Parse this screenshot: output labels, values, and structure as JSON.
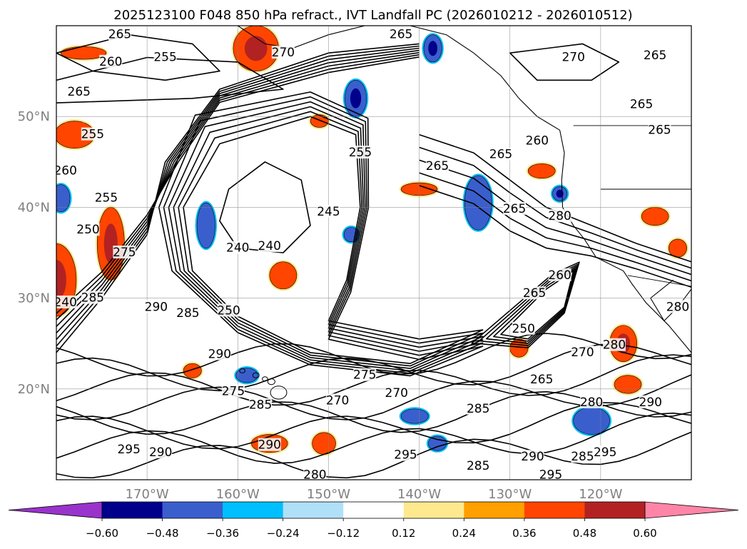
{
  "chart_data": {
    "type": "contour",
    "title": "2025123100 F048 850 hPa refract., IVT Landfall PC (2026010212 - 2026010512)",
    "xlabel": "",
    "ylabel": "",
    "lon_range": [
      -180,
      -110
    ],
    "lat_range": [
      10,
      60
    ],
    "lon_ticks": [
      "170°W",
      "160°W",
      "150°W",
      "140°W",
      "130°W",
      "120°W"
    ],
    "lon_tick_values": [
      -170,
      -160,
      -150,
      -140,
      -130,
      -120
    ],
    "lat_ticks": [
      "20°N",
      "30°N",
      "40°N",
      "50°N"
    ],
    "lat_tick_values": [
      20,
      30,
      40,
      50
    ],
    "grid": true,
    "contour_labels": [
      {
        "text": "265",
        "lon": -173,
        "lat": 59
      },
      {
        "text": "260",
        "lon": -174,
        "lat": 56
      },
      {
        "text": "255",
        "lon": -168,
        "lat": 56.5
      },
      {
        "text": "265",
        "lon": -177.5,
        "lat": 52.7
      },
      {
        "text": "255",
        "lon": -176,
        "lat": 48
      },
      {
        "text": "260",
        "lon": -179,
        "lat": 44
      },
      {
        "text": "255",
        "lon": -174.5,
        "lat": 41
      },
      {
        "text": "250",
        "lon": -176.5,
        "lat": 37.5
      },
      {
        "text": "275",
        "lon": -172.5,
        "lat": 35
      },
      {
        "text": "240",
        "lon": -160,
        "lat": 35.5
      },
      {
        "text": "240",
        "lon": -156.5,
        "lat": 35.7
      },
      {
        "text": "245",
        "lon": -150,
        "lat": 39.5
      },
      {
        "text": "255",
        "lon": -146.5,
        "lat": 46
      },
      {
        "text": "265",
        "lon": -138,
        "lat": 44.5
      },
      {
        "text": "265",
        "lon": -131,
        "lat": 45.8
      },
      {
        "text": "260",
        "lon": -127,
        "lat": 47.3
      },
      {
        "text": "265",
        "lon": -129.5,
        "lat": 39.8
      },
      {
        "text": "280",
        "lon": -124.5,
        "lat": 39
      },
      {
        "text": "270",
        "lon": -123,
        "lat": 56.5
      },
      {
        "text": "265",
        "lon": -114,
        "lat": 56.7
      },
      {
        "text": "265",
        "lon": -115.5,
        "lat": 51.3
      },
      {
        "text": "265",
        "lon": -113.5,
        "lat": 48.5
      },
      {
        "text": "290",
        "lon": -169,
        "lat": 29
      },
      {
        "text": "285",
        "lon": -165.5,
        "lat": 28.3
      },
      {
        "text": "250",
        "lon": -161,
        "lat": 28.6
      },
      {
        "text": "290",
        "lon": -162,
        "lat": 23.8
      },
      {
        "text": "275",
        "lon": -160.5,
        "lat": 19.7
      },
      {
        "text": "285",
        "lon": -157.5,
        "lat": 18.2
      },
      {
        "text": "275",
        "lon": -146,
        "lat": 21.5
      },
      {
        "text": "270",
        "lon": -149,
        "lat": 18.7
      },
      {
        "text": "270",
        "lon": -142.5,
        "lat": 19.5
      },
      {
        "text": "260",
        "lon": -124.5,
        "lat": 32.5
      },
      {
        "text": "265",
        "lon": -127.3,
        "lat": 30.5
      },
      {
        "text": "250",
        "lon": -128.5,
        "lat": 26.6
      },
      {
        "text": "270",
        "lon": -122,
        "lat": 24
      },
      {
        "text": "265",
        "lon": -126.5,
        "lat": 21
      },
      {
        "text": "280",
        "lon": -121,
        "lat": 18.5
      },
      {
        "text": "280",
        "lon": -118.5,
        "lat": 24.8
      },
      {
        "text": "285",
        "lon": -133.5,
        "lat": 17.8
      },
      {
        "text": "290",
        "lon": -114.5,
        "lat": 18.5
      },
      {
        "text": "290",
        "lon": -168.5,
        "lat": 13
      },
      {
        "text": "295",
        "lon": -172,
        "lat": 13.3
      },
      {
        "text": "290",
        "lon": -156.5,
        "lat": 13.8
      },
      {
        "text": "280",
        "lon": -151.5,
        "lat": 10.5
      },
      {
        "text": "295",
        "lon": -141.5,
        "lat": 12.7
      },
      {
        "text": "285",
        "lon": -133.5,
        "lat": 11.5
      },
      {
        "text": "290",
        "lon": -127.5,
        "lat": 12.5
      },
      {
        "text": "285",
        "lon": -122,
        "lat": 12.5
      },
      {
        "text": "295",
        "lon": -119.5,
        "lat": 13
      },
      {
        "text": "295",
        "lon": -125.5,
        "lat": 10.5
      },
      {
        "text": "280",
        "lon": -111.5,
        "lat": 29
      },
      {
        "text": "285",
        "lon": -176,
        "lat": 30
      },
      {
        "text": "240",
        "lon": -179,
        "lat": 29.5
      },
      {
        "text": "265",
        "lon": -142,
        "lat": 59
      },
      {
        "text": "270",
        "lon": -155,
        "lat": 57
      }
    ],
    "colorbar": {
      "ticks": [
        "−0.60",
        "−0.48",
        "−0.36",
        "−0.24",
        "−0.12",
        "0.12",
        "0.24",
        "0.36",
        "0.48",
        "0.60"
      ],
      "colors": [
        "#9933cc",
        "#00008b",
        "#3a5fcd",
        "#00bfff",
        "#b0e0f8",
        "#ffffff",
        "#ffe98f",
        "#ff9f00",
        "#ff4500",
        "#b22222",
        "#ff85a8"
      ],
      "extend": "both"
    },
    "shaded_regions": [
      {
        "lon": -180,
        "lat": 32,
        "rx": 2.2,
        "ry": 4,
        "color": "#ff4500",
        "inner": "#b22222"
      },
      {
        "lon": -174,
        "lat": 36,
        "rx": 1.5,
        "ry": 4,
        "color": "#ff4500",
        "inner": "#b22222"
      },
      {
        "lon": -158,
        "lat": 57.5,
        "rx": 2.5,
        "ry": 2.5,
        "color": "#ff4500",
        "inner": "#b22222"
      },
      {
        "lon": -178,
        "lat": 48,
        "rx": 2.2,
        "ry": 1.5,
        "color": "#ff4500",
        "inner": null
      },
      {
        "lon": -177,
        "lat": 57,
        "rx": 2.5,
        "ry": 0.7,
        "color": "#ff4500",
        "inner": null
      },
      {
        "lon": -155,
        "lat": 32.5,
        "rx": 1.5,
        "ry": 1.5,
        "color": "#ff4500",
        "inner": null
      },
      {
        "lon": -140,
        "lat": 42,
        "rx": 2,
        "ry": 0.7,
        "color": "#ff4500",
        "inner": null
      },
      {
        "lon": -129,
        "lat": 24.5,
        "rx": 1,
        "ry": 1,
        "color": "#ff4500",
        "inner": null
      },
      {
        "lon": -117.5,
        "lat": 25,
        "rx": 1.5,
        "ry": 2,
        "color": "#ff4500",
        "inner": "#b22222"
      },
      {
        "lon": -117,
        "lat": 20.5,
        "rx": 1.5,
        "ry": 1,
        "color": "#ff4500",
        "inner": null
      },
      {
        "lon": -156.5,
        "lat": 14,
        "rx": 2,
        "ry": 1,
        "color": "#ff4500",
        "inner": null
      },
      {
        "lon": -150.5,
        "lat": 14,
        "rx": 1.3,
        "ry": 1.2,
        "color": "#ff4500",
        "inner": null
      },
      {
        "lon": -165,
        "lat": 22,
        "rx": 1,
        "ry": 0.8,
        "color": "#ff4500",
        "inner": null
      },
      {
        "lon": -126.5,
        "lat": 44,
        "rx": 1.5,
        "ry": 0.8,
        "color": "#ff4500",
        "inner": null
      },
      {
        "lon": -114,
        "lat": 39,
        "rx": 1.5,
        "ry": 1,
        "color": "#ff4500",
        "inner": null
      },
      {
        "lon": -111.5,
        "lat": 35.5,
        "rx": 1,
        "ry": 1,
        "color": "#ff4500",
        "inner": null
      },
      {
        "lon": -151,
        "lat": 49.5,
        "rx": 1,
        "ry": 0.7,
        "color": "#ff4500",
        "inner": null
      },
      {
        "lon": -147,
        "lat": 52,
        "rx": 1.2,
        "ry": 2,
        "color": "#3a5fcd",
        "inner": "#00008b"
      },
      {
        "lon": -163.5,
        "lat": 38,
        "rx": 1,
        "ry": 2.5,
        "color": "#3a5fcd",
        "inner": null
      },
      {
        "lon": -147.5,
        "lat": 37,
        "rx": 0.8,
        "ry": 0.8,
        "color": "#3a5fcd",
        "inner": null
      },
      {
        "lon": -179.5,
        "lat": 41,
        "rx": 1,
        "ry": 1.5,
        "color": "#3a5fcd",
        "inner": null
      },
      {
        "lon": -140.5,
        "lat": 17,
        "rx": 1.5,
        "ry": 0.8,
        "color": "#3a5fcd",
        "inner": null
      },
      {
        "lon": -121,
        "lat": 16.5,
        "rx": 2,
        "ry": 1.5,
        "color": "#3a5fcd",
        "inner": null
      },
      {
        "lon": -133.5,
        "lat": 40.5,
        "rx": 1.5,
        "ry": 3,
        "color": "#3a5fcd",
        "inner": null
      },
      {
        "lon": -124.5,
        "lat": 41.5,
        "rx": 0.8,
        "ry": 0.8,
        "color": "#3a5fcd",
        "inner": "#00008b"
      },
      {
        "lon": -138.5,
        "lat": 57.5,
        "rx": 1,
        "ry": 1.5,
        "color": "#3a5fcd",
        "inner": "#00008b"
      },
      {
        "lon": -159,
        "lat": 21.5,
        "rx": 1.2,
        "ry": 0.8,
        "color": "#3a5fcd",
        "inner": null
      },
      {
        "lon": -138,
        "lat": 14,
        "rx": 1,
        "ry": 0.8,
        "color": "#3a5fcd",
        "inner": null
      }
    ]
  },
  "colorbar_labels": [
    "−0.60",
    "−0.48",
    "−0.36",
    "−0.24",
    "−0.12",
    "0.12",
    "0.24",
    "0.36",
    "0.48",
    "0.60"
  ]
}
